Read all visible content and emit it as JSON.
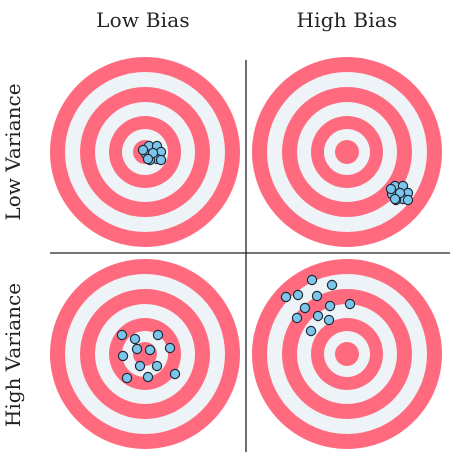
{
  "columns": [
    {
      "label": "Low Bias"
    },
    {
      "label": "High Bias"
    }
  ],
  "rows": [
    {
      "label": "Low Variance"
    },
    {
      "label": "High Variance"
    }
  ],
  "colors": {
    "ring": "#ff6a7e",
    "ring_gap": "#eef3f7",
    "dot_fill": "#7cc6ec",
    "dot_stroke": "#1f2a36",
    "divider": "#222222"
  },
  "panels": [
    {
      "id": "low-bias-low-variance",
      "shots": 10
    },
    {
      "id": "high-bias-low-variance",
      "shots": 10
    },
    {
      "id": "low-bias-high-variance",
      "shots": 12
    },
    {
      "id": "high-bias-high-variance",
      "shots": 12
    }
  ]
}
